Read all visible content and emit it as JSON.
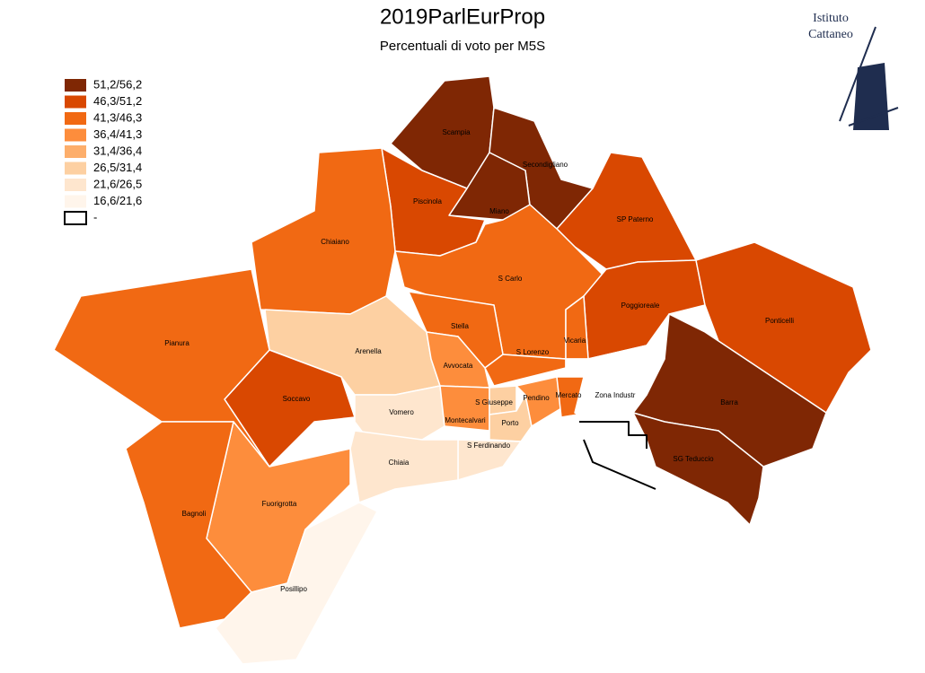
{
  "title": "2019ParlEurProp",
  "subtitle": "Percentuali di voto per M5S",
  "logo": {
    "line1": "Istituto",
    "line2": "Cattaneo"
  },
  "legend": [
    {
      "label": "51,2/56,2",
      "color": "#7f2704"
    },
    {
      "label": "46,3/51,2",
      "color": "#d94801"
    },
    {
      "label": "41,3/46,3",
      "color": "#f16913"
    },
    {
      "label": "36,4/41,3",
      "color": "#fd8d3c"
    },
    {
      "label": "31,4/36,4",
      "color": "#fdae6b"
    },
    {
      "label": "26,5/31,4",
      "color": "#fdd0a2"
    },
    {
      "label": "21,6/26,5",
      "color": "#fee6ce"
    },
    {
      "label": "16,6/21,6",
      "color": "#fff5eb"
    },
    {
      "label": "-",
      "color": "#ffffff"
    }
  ],
  "regions": [
    {
      "name": "Scampia",
      "color": "#7f2704"
    },
    {
      "name": "Secondigliano",
      "color": "#7f2704"
    },
    {
      "name": "Miano",
      "color": "#7f2704"
    },
    {
      "name": "Piscinola",
      "color": "#d94801"
    },
    {
      "name": "Chiaiano",
      "color": "#f16913"
    },
    {
      "name": "SP Paterno",
      "color": "#d94801"
    },
    {
      "name": "S Carlo",
      "color": "#f16913"
    },
    {
      "name": "Poggioreale",
      "color": "#d94801"
    },
    {
      "name": "Ponticelli",
      "color": "#d94801"
    },
    {
      "name": "Barra",
      "color": "#7f2704"
    },
    {
      "name": "SG Teduccio",
      "color": "#7f2704"
    },
    {
      "name": "Stella",
      "color": "#f16913"
    },
    {
      "name": "S Lorenzo",
      "color": "#f16913"
    },
    {
      "name": "Vicaria",
      "color": "#f16913"
    },
    {
      "name": "Arenella",
      "color": "#fdd0a2"
    },
    {
      "name": "Avvocata",
      "color": "#fd8d3c"
    },
    {
      "name": "Soccavo",
      "color": "#d94801"
    },
    {
      "name": "Pianura",
      "color": "#f16913"
    },
    {
      "name": "Vomero",
      "color": "#fee6ce"
    },
    {
      "name": "Montecalvari",
      "color": "#fd8d3c"
    },
    {
      "name": "S Giuseppe",
      "color": "#fdd0a2"
    },
    {
      "name": "Porto",
      "color": "#fdd0a2"
    },
    {
      "name": "Pendino",
      "color": "#fd8d3c"
    },
    {
      "name": "Mercato",
      "color": "#f16913"
    },
    {
      "name": "Zona Industr",
      "color": "#ffffff"
    },
    {
      "name": "S Ferdinando",
      "color": "#fee6ce"
    },
    {
      "name": "Chiaia",
      "color": "#fee6ce"
    },
    {
      "name": "Fuorigrotta",
      "color": "#fd8d3c"
    },
    {
      "name": "Bagnoli",
      "color": "#f16913"
    },
    {
      "name": "Posillipo",
      "color": "#fff5eb"
    }
  ]
}
